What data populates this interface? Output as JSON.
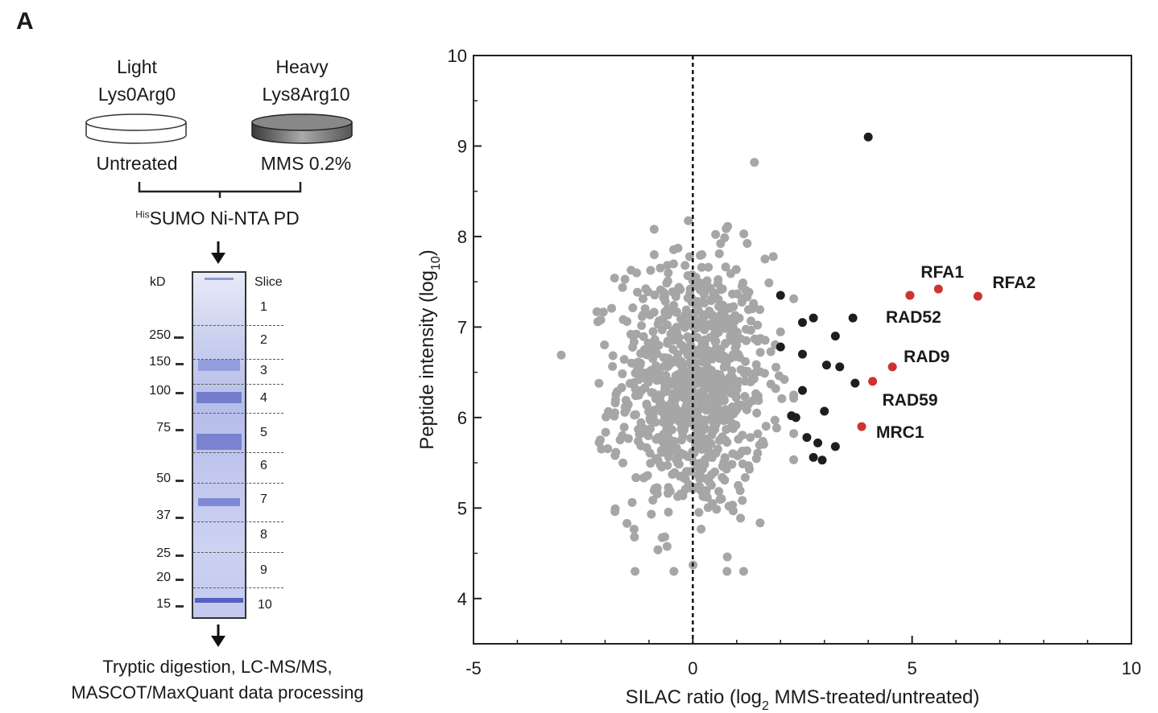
{
  "panel_label": "A",
  "workflow": {
    "light": {
      "label": "Light",
      "isotope": "Lys0Arg0",
      "condition": "Untreated"
    },
    "heavy": {
      "label": "Heavy",
      "isotope": "Lys8Arg10",
      "condition": "MMS 0.2%"
    },
    "pulldown_sup": "His",
    "pulldown": "SUMO Ni-NTA PD",
    "output_line1": "Tryptic digestion, LC-MS/MS,",
    "output_line2": "MASCOT/MaxQuant data processing"
  },
  "gel": {
    "kd_label": "kD",
    "slice_label": "Slice",
    "markers": [
      "250",
      "150",
      "100",
      "75",
      "50",
      "37",
      "25",
      "20",
      "15"
    ],
    "slices": [
      "1",
      "2",
      "3",
      "4",
      "5",
      "6",
      "7",
      "8",
      "9",
      "10"
    ]
  },
  "chart_data": {
    "type": "scatter",
    "title": "",
    "xlabel": "SILAC ratio (log",
    "xlabel_sub": "2",
    "xlabel_tail": " MMS-treated/untreated)",
    "ylabel": "Peptide intensity (log",
    "ylabel_sub": "10",
    "ylabel_tail": ")",
    "xlim": [
      -5,
      10
    ],
    "ylim": [
      3.5,
      10
    ],
    "xticks": [
      "-5",
      "0",
      "5",
      "10"
    ],
    "yticks": [
      "4",
      "5",
      "6",
      "7",
      "8",
      "9",
      "10"
    ],
    "reference_line_x": 0,
    "colors": {
      "background_points": "#a6a6a6",
      "enriched": "#1e1e1e",
      "highlighted": "#cc3333"
    },
    "enriched": [
      [
        4.0,
        9.1
      ],
      [
        2.0,
        7.35
      ],
      [
        2.5,
        7.05
      ],
      [
        2.75,
        7.1
      ],
      [
        3.65,
        7.1
      ],
      [
        3.25,
        6.9
      ],
      [
        2.0,
        6.78
      ],
      [
        2.5,
        6.7
      ],
      [
        3.05,
        6.58
      ],
      [
        3.35,
        6.56
      ],
      [
        3.7,
        6.38
      ],
      [
        2.5,
        6.3
      ],
      [
        2.25,
        6.02
      ],
      [
        2.35,
        6.0
      ],
      [
        3.0,
        6.07
      ],
      [
        2.6,
        5.78
      ],
      [
        2.85,
        5.72
      ],
      [
        3.25,
        5.68
      ],
      [
        2.75,
        5.56
      ],
      [
        2.95,
        5.53
      ]
    ],
    "highlighted": [
      {
        "name": "RFA1",
        "x": 5.6,
        "y": 7.42
      },
      {
        "name": "RFA2",
        "x": 6.5,
        "y": 7.34
      },
      {
        "name": "",
        "x": 4.95,
        "y": 7.35
      },
      {
        "name": "RAD52",
        "x": 4.95,
        "y": 7.35
      },
      {
        "name": "RAD9",
        "x": 4.55,
        "y": 6.56
      },
      {
        "name": "RAD59",
        "x": 4.1,
        "y": 6.4
      },
      {
        "name": "MRC1",
        "x": 3.85,
        "y": 5.9
      }
    ],
    "background_points_count": 900
  }
}
